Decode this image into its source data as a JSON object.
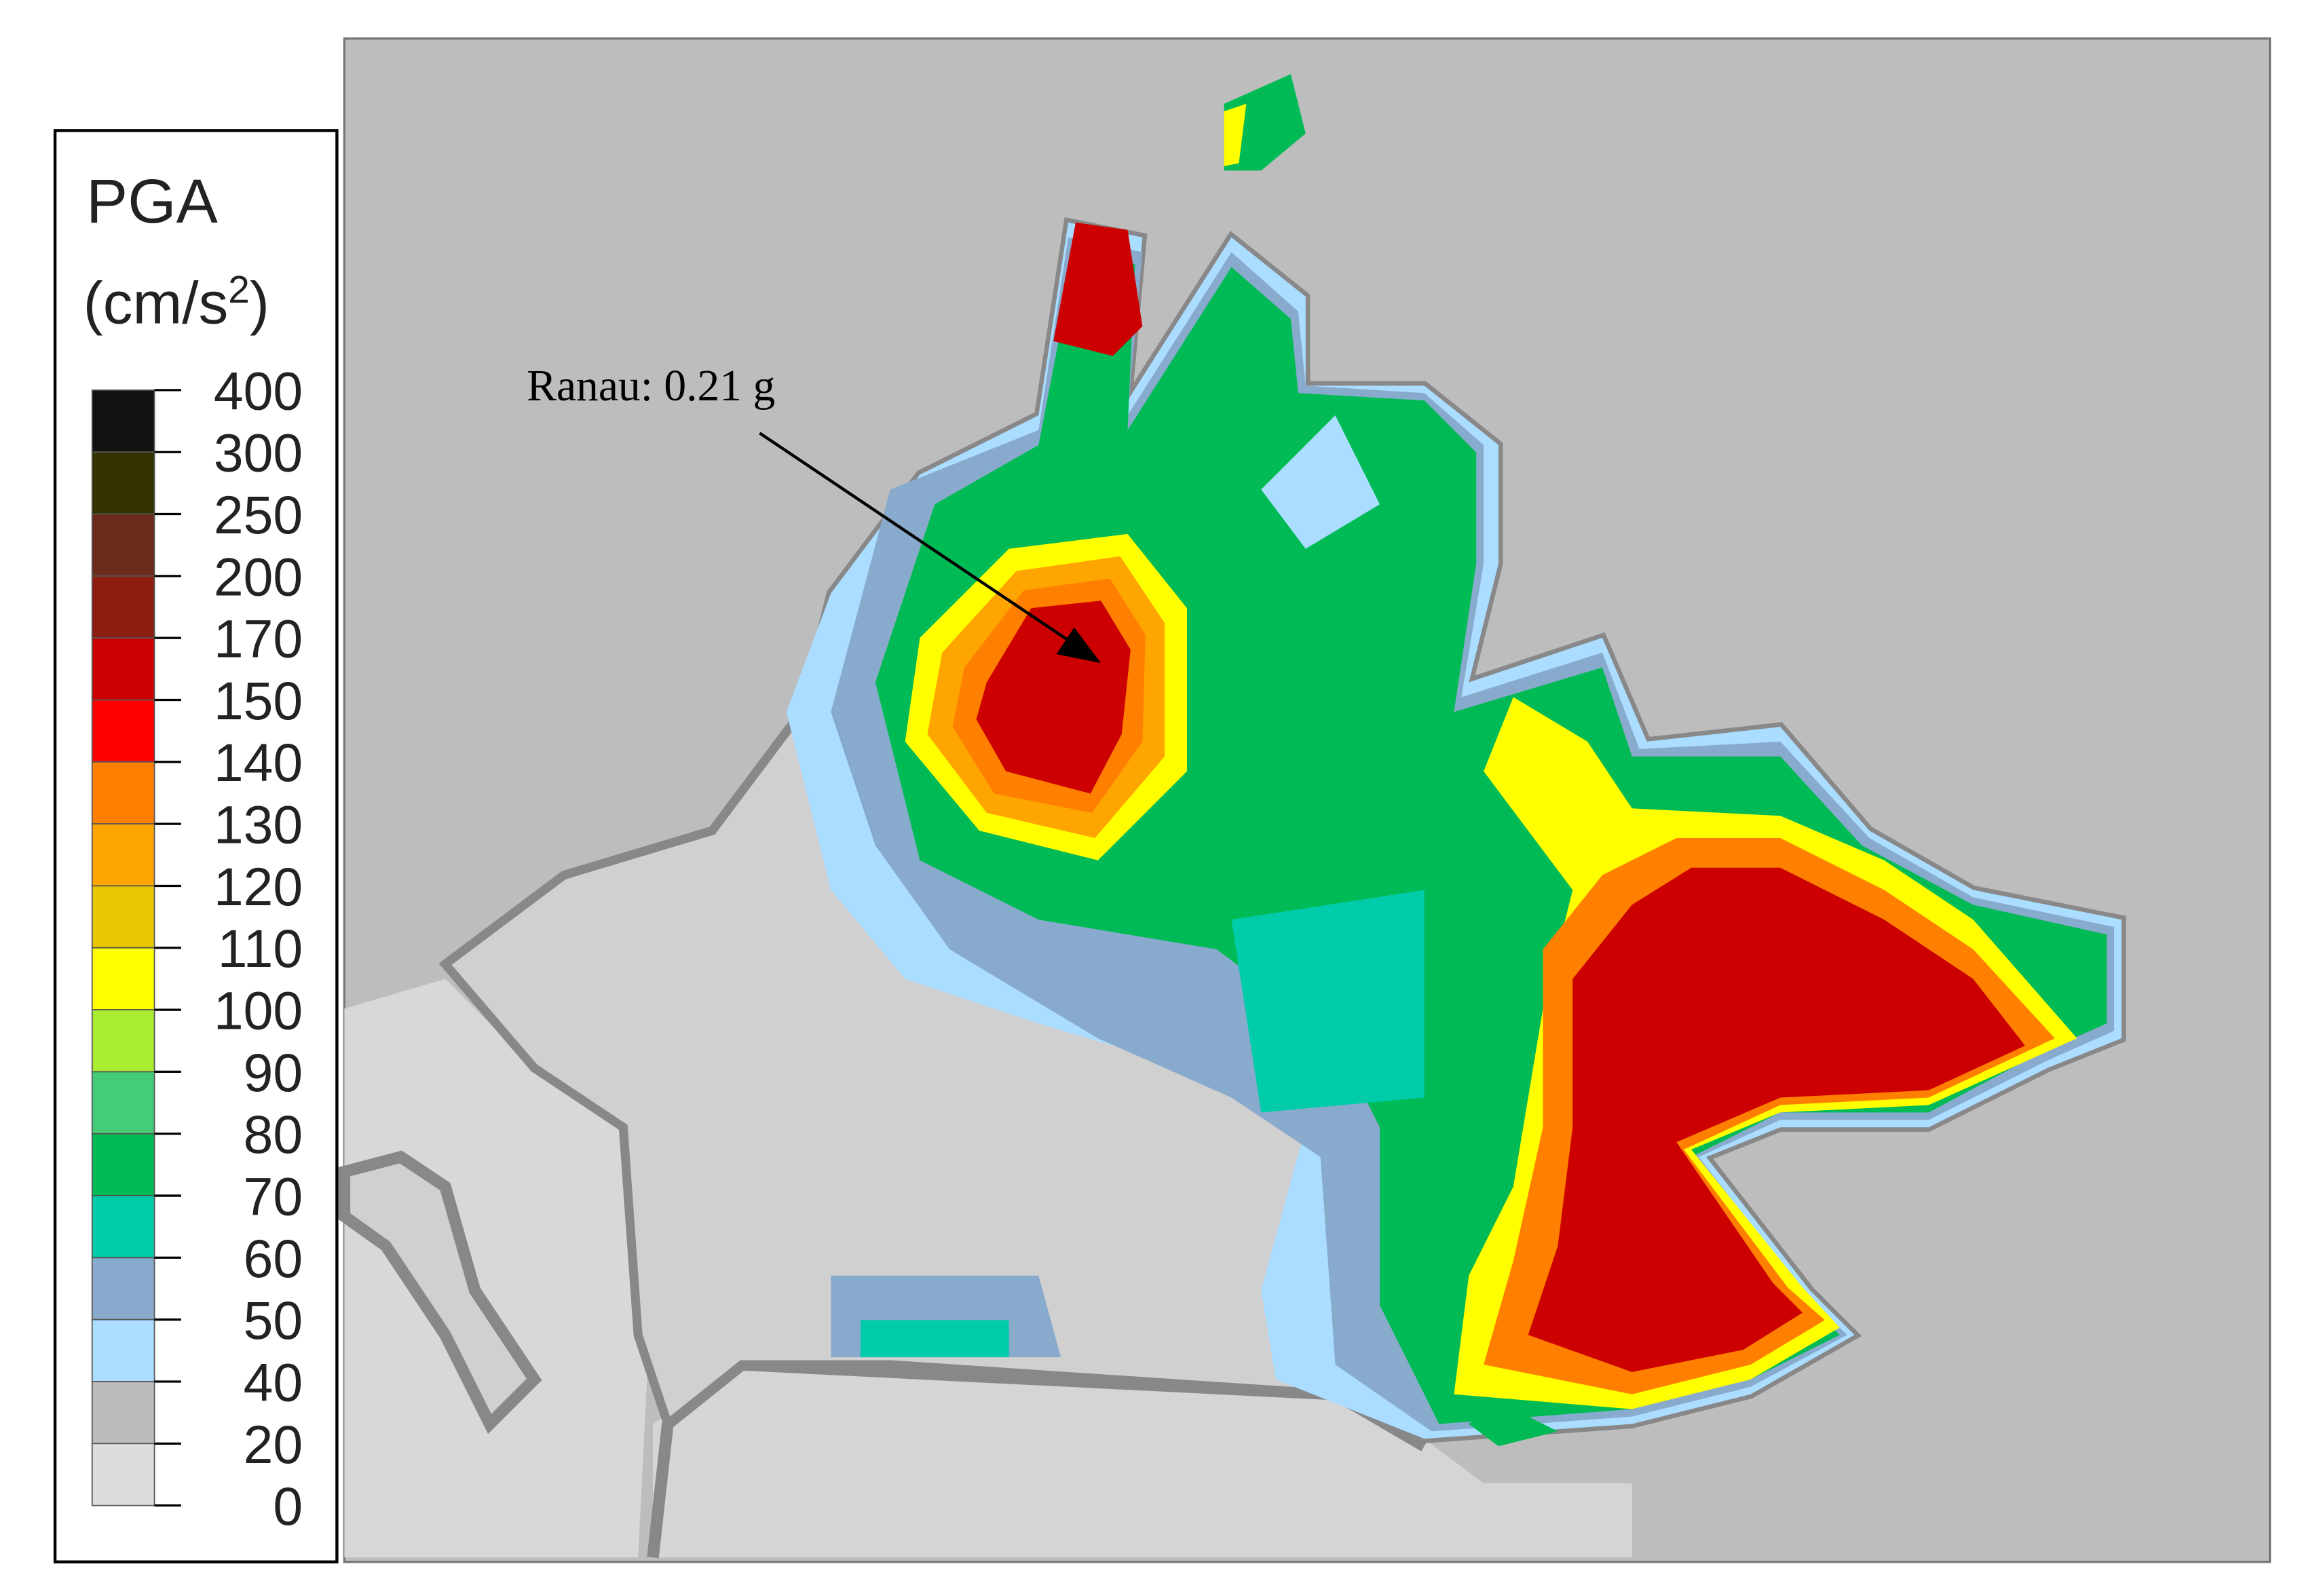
{
  "legend": {
    "title": "PGA",
    "unit": [
      "(cm/s",
      "2",
      ")"
    ],
    "levels": [
      400,
      300,
      250,
      200,
      170,
      150,
      140,
      130,
      120,
      110,
      100,
      90,
      80,
      70,
      60,
      50,
      40,
      20,
      0
    ],
    "colors": [
      "#111111",
      "#333300",
      "#6b2a1a",
      "#8b1e10",
      "#cc0000",
      "#ff0000",
      "#ff7f00",
      "#ffa500",
      "#e8c800",
      "#ffff00",
      "#aaee33",
      "#44cc77",
      "#00bb55",
      "#00ccaa",
      "#88aacc",
      "#aaddff",
      "#bbbbbb",
      "#dddddd"
    ]
  },
  "annotation": "Ranau: 0.21 g"
}
